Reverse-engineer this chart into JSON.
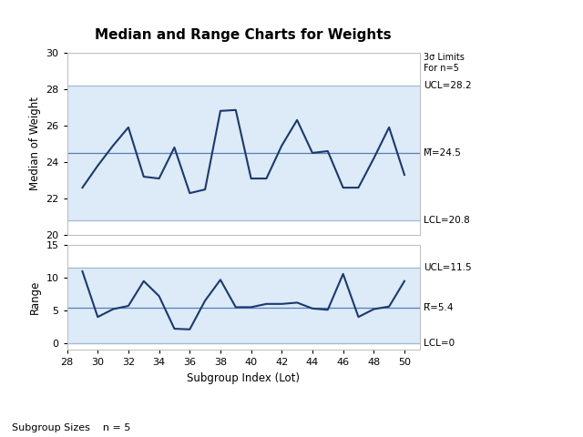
{
  "title": "Median and Range Charts for Weights",
  "xlabel": "Subgroup Index (Lot)",
  "ylabel_top": "Median of Weight",
  "ylabel_bottom": "Range",
  "footer": "Subgroup Sizes    n = 5",
  "subgroup_x": [
    29,
    30,
    31,
    32,
    33,
    34,
    35,
    36,
    37,
    38,
    39,
    40,
    41,
    42,
    43,
    44,
    45,
    46,
    47,
    48,
    49,
    50
  ],
  "median_y": [
    22.6,
    23.8,
    24.9,
    25.9,
    23.2,
    23.1,
    24.8,
    22.3,
    22.5,
    26.8,
    26.85,
    23.1,
    23.1,
    24.9,
    26.3,
    24.5,
    24.6,
    22.6,
    22.6,
    24.2,
    25.9,
    23.3
  ],
  "range_y": [
    11.0,
    4.0,
    5.2,
    5.7,
    9.5,
    7.2,
    2.2,
    2.1,
    6.5,
    9.7,
    5.5,
    5.5,
    6.0,
    6.0,
    6.2,
    5.3,
    5.1,
    10.6,
    4.0,
    5.2,
    5.6,
    9.5
  ],
  "median_ucl": 28.2,
  "median_cl": 24.5,
  "median_lcl": 20.8,
  "range_ucl": 11.5,
  "range_cl": 5.4,
  "range_lcl": 0,
  "xlim": [
    28,
    51
  ],
  "median_ylim": [
    20,
    30
  ],
  "range_ylim": [
    -1,
    15
  ],
  "line_color": "#1a3a6b",
  "cl_line_color": "#5580bb",
  "limit_line_color": "#a0bcd8",
  "bg_color": "#ddeaf7",
  "sigma_label": "3σ Limits\nFor n=5",
  "xticks": [
    28,
    30,
    32,
    34,
    36,
    38,
    40,
    42,
    44,
    46,
    48,
    50
  ],
  "median_yticks": [
    20,
    22,
    24,
    26,
    28,
    30
  ],
  "range_yticks": [
    0,
    5,
    10,
    15
  ]
}
